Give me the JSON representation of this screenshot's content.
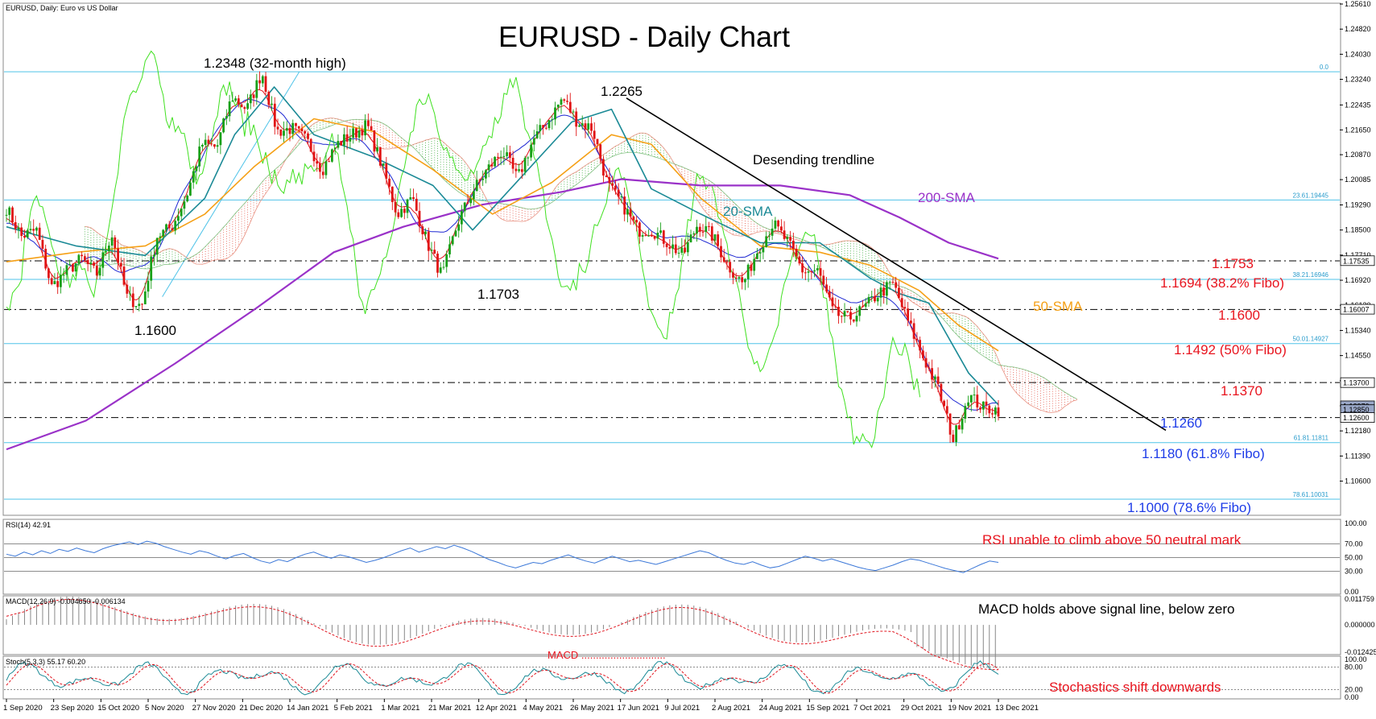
{
  "chart_data": {
    "type": "candlestick",
    "header": "EURUSD, Daily:  Euro vs US Dollar",
    "title": "EURUSD - Daily Chart",
    "ylim": [
      1.0955,
      1.2561
    ],
    "y_ticks": [
      "1.25610",
      "1.24820",
      "1.24030",
      "1.23240",
      "1.22435",
      "1.21650",
      "1.20870",
      "1.20085",
      "1.19290",
      "1.18500",
      "1.17710",
      "1.16920",
      "1.16130",
      "1.15340",
      "1.14550",
      "1.13760",
      "1.12970",
      "1.12180",
      "1.11390",
      "1.10600"
    ],
    "x_ticks": [
      "1 Sep 2020",
      "23 Sep 2020",
      "15 Oct 2020",
      "5 Nov 2020",
      "27 Nov 2020",
      "21 Dec 2020",
      "14 Jan 2021",
      "5 Feb 2021",
      "1 Mar 2021",
      "21 Mar 2021",
      "12 Apr 2021",
      "4 May 2021",
      "26 May 2021",
      "17 Jun 2021",
      "9 Jul 2021",
      "2 Aug 2021",
      "24 Aug 2021",
      "15 Sep 2021",
      "7 Oct 2021",
      "29 Oct 2021",
      "19 Nov 2021",
      "13 Dec 2021"
    ],
    "close_path": [
      {
        "date": "1 Sep 2020",
        "close": 1.192
      },
      {
        "date": "10 Sep 2020",
        "close": 1.183
      },
      {
        "date": "17 Sep 2020",
        "close": 1.185
      },
      {
        "date": "23 Sep 2020",
        "close": 1.167
      },
      {
        "date": "30 Sep 2020",
        "close": 1.172
      },
      {
        "date": "8 Oct 2020",
        "close": 1.176
      },
      {
        "date": "15 Oct 2020",
        "close": 1.171
      },
      {
        "date": "22 Oct 2020",
        "close": 1.184
      },
      {
        "date": "30 Oct 2020",
        "close": 1.164
      },
      {
        "date": "4 Nov 2020",
        "close": 1.161
      },
      {
        "date": "13 Nov 2020",
        "close": 1.183
      },
      {
        "date": "20 Nov 2020",
        "close": 1.186
      },
      {
        "date": "27 Nov 2020",
        "close": 1.196
      },
      {
        "date": "4 Dec 2020",
        "close": 1.212
      },
      {
        "date": "11 Dec 2020",
        "close": 1.211
      },
      {
        "date": "17 Dec 2020",
        "close": 1.227
      },
      {
        "date": "28 Dec 2020",
        "close": 1.223
      },
      {
        "date": "6 Jan 2021",
        "close": 1.2348
      },
      {
        "date": "14 Jan 2021",
        "close": 1.216
      },
      {
        "date": "22 Jan 2021",
        "close": 1.217
      },
      {
        "date": "29 Jan 2021",
        "close": 1.213
      },
      {
        "date": "5 Feb 2021",
        "close": 1.204
      },
      {
        "date": "12 Feb 2021",
        "close": 1.212
      },
      {
        "date": "19 Feb 2021",
        "close": 1.215
      },
      {
        "date": "25 Feb 2021",
        "close": 1.218
      },
      {
        "date": "1 Mar 2021",
        "close": 1.205
      },
      {
        "date": "9 Mar 2021",
        "close": 1.19
      },
      {
        "date": "17 Mar 2021",
        "close": 1.195
      },
      {
        "date": "24 Mar 2021",
        "close": 1.181
      },
      {
        "date": "31 Mar 2021",
        "close": 1.1703
      },
      {
        "date": "7 Apr 2021",
        "close": 1.187
      },
      {
        "date": "14 Apr 2021",
        "close": 1.197
      },
      {
        "date": "21 Apr 2021",
        "close": 1.204
      },
      {
        "date": "28 Apr 2021",
        "close": 1.21
      },
      {
        "date": "5 May 2021",
        "close": 1.201
      },
      {
        "date": "12 May 2021",
        "close": 1.213
      },
      {
        "date": "19 May 2021",
        "close": 1.219
      },
      {
        "date": "25 May 2021",
        "close": 1.2265
      },
      {
        "date": "2 Jun 2021",
        "close": 1.219
      },
      {
        "date": "10 Jun 2021",
        "close": 1.217
      },
      {
        "date": "17 Jun 2021",
        "close": 1.199
      },
      {
        "date": "24 Jun 2021",
        "close": 1.193
      },
      {
        "date": "1 Jul 2021",
        "close": 1.185
      },
      {
        "date": "8 Jul 2021",
        "close": 1.185
      },
      {
        "date": "15 Jul 2021",
        "close": 1.181
      },
      {
        "date": "22 Jul 2021",
        "close": 1.177
      },
      {
        "date": "30 Jul 2021",
        "close": 1.187
      },
      {
        "date": "5 Aug 2021",
        "close": 1.183
      },
      {
        "date": "12 Aug 2021",
        "close": 1.174
      },
      {
        "date": "20 Aug 2021",
        "close": 1.168
      },
      {
        "date": "27 Aug 2021",
        "close": 1.179
      },
      {
        "date": "3 Sep 2021",
        "close": 1.187
      },
      {
        "date": "10 Sep 2021",
        "close": 1.181
      },
      {
        "date": "17 Sep 2021",
        "close": 1.172
      },
      {
        "date": "24 Sep 2021",
        "close": 1.172
      },
      {
        "date": "1 Oct 2021",
        "close": 1.159
      },
      {
        "date": "8 Oct 2021",
        "close": 1.157
      },
      {
        "date": "15 Oct 2021",
        "close": 1.16
      },
      {
        "date": "22 Oct 2021",
        "close": 1.165
      },
      {
        "date": "28 Oct 2021",
        "close": 1.168
      },
      {
        "date": "4 Nov 2021",
        "close": 1.156
      },
      {
        "date": "11 Nov 2021",
        "close": 1.145
      },
      {
        "date": "18 Nov 2021",
        "close": 1.135
      },
      {
        "date": "24 Nov 2021",
        "close": 1.119
      },
      {
        "date": "30 Nov 2021",
        "close": 1.133
      },
      {
        "date": "6 Dec 2021",
        "close": 1.129
      },
      {
        "date": "13 Dec 2021",
        "close": 1.1285
      }
    ],
    "sma20": [
      [
        0,
        1.186
      ],
      [
        0.07,
        1.18
      ],
      [
        0.14,
        1.177
      ],
      [
        0.2,
        1.195
      ],
      [
        0.23,
        1.215
      ],
      [
        0.27,
        1.23
      ],
      [
        0.31,
        1.215
      ],
      [
        0.37,
        1.208
      ],
      [
        0.43,
        1.199
      ],
      [
        0.47,
        1.185
      ],
      [
        0.52,
        1.202
      ],
      [
        0.57,
        1.219
      ],
      [
        0.61,
        1.223
      ],
      [
        0.65,
        1.198
      ],
      [
        0.7,
        1.19
      ],
      [
        0.76,
        1.181
      ],
      [
        0.82,
        1.181
      ],
      [
        0.87,
        1.17
      ],
      [
        0.9,
        1.165
      ],
      [
        0.93,
        1.162
      ],
      [
        0.97,
        1.14
      ],
      [
        1.0,
        1.13
      ]
    ],
    "sma50": [
      [
        0,
        1.175
      ],
      [
        0.07,
        1.178
      ],
      [
        0.14,
        1.18
      ],
      [
        0.2,
        1.19
      ],
      [
        0.25,
        1.205
      ],
      [
        0.31,
        1.22
      ],
      [
        0.37,
        1.216
      ],
      [
        0.43,
        1.204
      ],
      [
        0.49,
        1.19
      ],
      [
        0.55,
        1.2
      ],
      [
        0.61,
        1.215
      ],
      [
        0.65,
        1.212
      ],
      [
        0.7,
        1.195
      ],
      [
        0.76,
        1.18
      ],
      [
        0.82,
        1.178
      ],
      [
        0.87,
        1.174
      ],
      [
        0.92,
        1.166
      ],
      [
        0.96,
        1.155
      ],
      [
        1.0,
        1.147
      ]
    ],
    "sma200": [
      [
        0,
        1.116
      ],
      [
        0.08,
        1.125
      ],
      [
        0.17,
        1.143
      ],
      [
        0.25,
        1.16
      ],
      [
        0.33,
        1.178
      ],
      [
        0.4,
        1.186
      ],
      [
        0.48,
        1.193
      ],
      [
        0.56,
        1.197
      ],
      [
        0.62,
        1.201
      ],
      [
        0.7,
        1.199
      ],
      [
        0.78,
        1.199
      ],
      [
        0.85,
        1.196
      ],
      [
        0.9,
        1.189
      ],
      [
        0.95,
        1.181
      ],
      [
        1.0,
        1.176
      ]
    ],
    "price_levels": [
      {
        "value": 1.1753,
        "label": "1.1753",
        "style": "dashdot"
      },
      {
        "value": 1.16,
        "label": "1.1600",
        "style": "dashdot"
      },
      {
        "value": 1.137,
        "label": "1.1370",
        "style": "dashdot"
      },
      {
        "value": 1.126,
        "label": "1.1260",
        "style": "dashdot"
      }
    ],
    "fibo_levels": [
      {
        "value": 1.2348,
        "label": "0.0"
      },
      {
        "value": 1.19445,
        "label": "23.61.19445"
      },
      {
        "value": 1.16946,
        "label": "38.21.16946"
      },
      {
        "value": 1.14927,
        "label": "50.01.14927"
      },
      {
        "value": 1.11811,
        "label": "61.81.11811"
      },
      {
        "value": 1.10031,
        "label": "78.61.10031"
      }
    ],
    "axis_tags": [
      "1.17535",
      "1.16007",
      "1.13700",
      "1.12970",
      "1.12850",
      "1.12600"
    ],
    "trendline": {
      "from": {
        "date": "25 May 2021",
        "value": 1.2265
      },
      "to": {
        "date": "17 Dec 2021",
        "value": 1.122
      }
    },
    "annotations": {
      "high": "1.2348 (32-month high)",
      "peak": "1.2265",
      "low1": "1.1600",
      "low2": "1.1703",
      "trend": "Desending trendline",
      "sma200": "200-SMA",
      "sma20": "20-SMA",
      "sma50": "50-SMA",
      "r1753": "1.1753",
      "r1694": "1.1694 (38.2% Fibo)",
      "r1600": "1.1600",
      "r1492": "1.1492 (50% Fibo)",
      "r1370": "1.1370",
      "s1260": "1.1260",
      "s1180": "1.1180 (61.8% Fibo)",
      "s1000": "1.1000 (78.6% Fibo)"
    },
    "rsi": {
      "label": "RSI(14) 42.91",
      "ticks": [
        "100.00",
        "70.00",
        "50.00",
        "30.00",
        "0.00"
      ],
      "levels": [
        70,
        50,
        30
      ],
      "ylim": [
        0,
        100
      ],
      "values": [
        55,
        52,
        58,
        54,
        60,
        56,
        62,
        59,
        64,
        60,
        57,
        63,
        67,
        70,
        73,
        69,
        74,
        71,
        66,
        62,
        58,
        55,
        60,
        57,
        52,
        48,
        53,
        56,
        50,
        45,
        42,
        47,
        44,
        50,
        55,
        58,
        53,
        49,
        54,
        51,
        47,
        43,
        46,
        50,
        55,
        60,
        64,
        58,
        62,
        66,
        63,
        68,
        64,
        59,
        53,
        47,
        43,
        38,
        35,
        39,
        43,
        41,
        46,
        50,
        54,
        49,
        45,
        42,
        47,
        52,
        48,
        44,
        46,
        43,
        40,
        44,
        48,
        52,
        56,
        60,
        57,
        51,
        46,
        42,
        40,
        44,
        39,
        35,
        37,
        42,
        47,
        52,
        49,
        45,
        48,
        44,
        40,
        36,
        33,
        31,
        35,
        39,
        44,
        48,
        46,
        42,
        38,
        34,
        31,
        28,
        34,
        40,
        45,
        43
      ]
    },
    "macd": {
      "label": "MACD(12,26,9) -0.004650 -0.006134",
      "ticks": [
        "0.011759",
        "0.000000",
        "-0.012425"
      ],
      "ylim": [
        -0.012425,
        0.011759
      ]
    },
    "stoch": {
      "label": "Stoch(5,3,3) 55.17 60.20",
      "ticks": [
        "100.00",
        "80.00",
        "20.00",
        "0.00"
      ],
      "levels": [
        80,
        20
      ],
      "ylim": [
        0,
        100
      ]
    },
    "pane_notes": {
      "rsi": "RSI unable to climb above 50 neutral mark",
      "macd": "MACD holds above signal line, below zero",
      "macd_hidden": "MACD .............................",
      "stoch": "Stochastics shift downwards"
    },
    "colors": {
      "bull": "#18a018",
      "bear": "#e01414",
      "sma20": "#1b8a96",
      "sma50": "#f5a016",
      "sma200": "#9a32c8",
      "fibo": "#4fc3e8",
      "price_level": "#000000",
      "trend": "#000000",
      "tenkan": "#e0141e",
      "kijun": "#1e28d2",
      "chikou": "#40e020",
      "cloud_up": "#20a020",
      "cloud_dn": "#e04030",
      "rsi": "#3c78d8",
      "annotation_red": "#e8141e",
      "annotation_blue": "#1e3ce8"
    }
  }
}
